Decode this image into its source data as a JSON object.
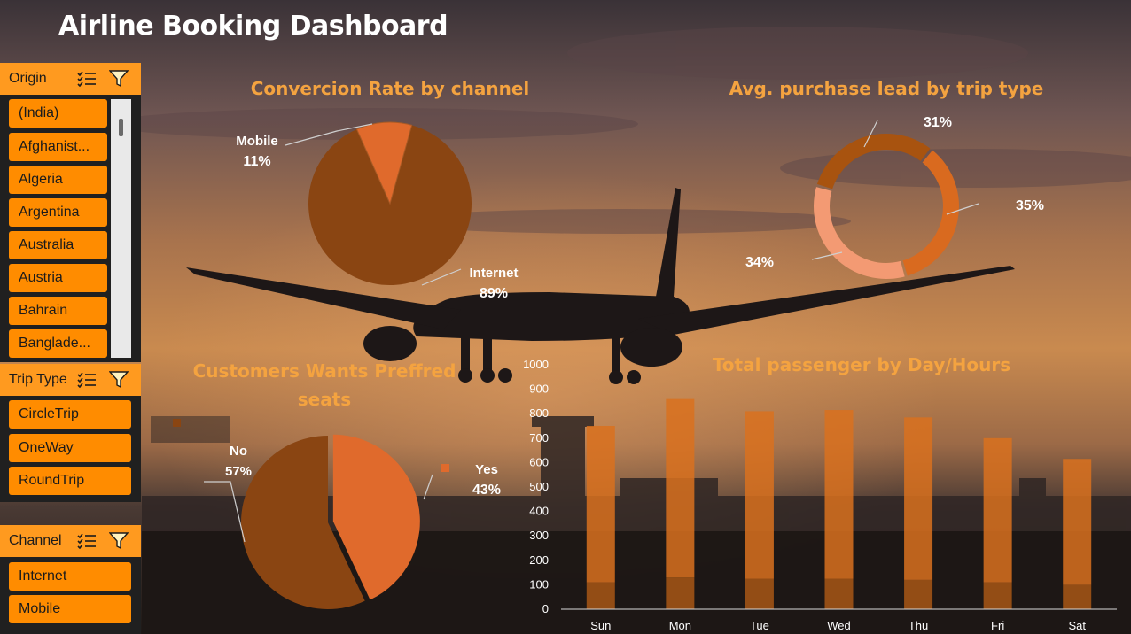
{
  "dashboard": {
    "title": "Airline Booking Dashboard"
  },
  "slicers": {
    "origin": {
      "label": "Origin",
      "items": [
        "(India)",
        "Afghanist...",
        "Algeria",
        "Argentina",
        "Australia",
        "Austria",
        "Bahrain",
        "Banglade..."
      ]
    },
    "trip_type": {
      "label": "Trip Type",
      "items": [
        "CircleTrip",
        "OneWay",
        "RoundTrip"
      ]
    },
    "channel": {
      "label": "Channel",
      "items": [
        "Internet",
        "Mobile"
      ]
    },
    "icons": [
      "multi-select-icon",
      "clear-filter-icon"
    ]
  },
  "colors": {
    "title_orange": "#f4a340",
    "slicer_header": "#ff9a1f",
    "slicer_item": "#ff8c00",
    "pie_dark": "#8a4512",
    "pie_light": "#e06a2c",
    "donut_dark": "#a8530f",
    "donut_mid": "#d96a1f",
    "donut_light": "#f39a73",
    "bar_top": "#d9711f",
    "bar_bottom": "#a85715"
  },
  "chart_data": [
    {
      "type": "pie",
      "title": "Convercion Rate by channel",
      "slices": [
        {
          "label": "Internet",
          "value": 89,
          "display": "89%"
        },
        {
          "label": "Mobile",
          "value": 11,
          "display": "11%"
        }
      ]
    },
    {
      "type": "pie",
      "title": "Avg. purchase lead by trip type",
      "style": "donut",
      "slices": [
        {
          "label": "",
          "value": 31,
          "display": "31%"
        },
        {
          "label": "",
          "value": 35,
          "display": "35%"
        },
        {
          "label": "",
          "value": 34,
          "display": "34%"
        }
      ]
    },
    {
      "type": "pie",
      "title": "Customers Wants Preffred seats",
      "title_lines": [
        "Customers Wants Preffred",
        "seats"
      ],
      "slices": [
        {
          "label": "No",
          "value": 57,
          "display": "57%"
        },
        {
          "label": "Yes",
          "value": 43,
          "display": "43%"
        }
      ]
    },
    {
      "type": "bar",
      "title": "Total passenger by Day/Hours",
      "categories": [
        "Sun",
        "Mon",
        "Tue",
        "Wed",
        "Thu",
        "Fri",
        "Sat"
      ],
      "series": [
        {
          "values": [
            110,
            130,
            125,
            125,
            120,
            110,
            100
          ]
        },
        {
          "values": [
            640,
            730,
            685,
            690,
            665,
            590,
            515
          ]
        }
      ],
      "totals": [
        750,
        860,
        810,
        815,
        785,
        700,
        615
      ],
      "stacked": true,
      "ylim": [
        0,
        1000
      ],
      "yticks": [
        "0",
        "100",
        "200",
        "300",
        "400",
        "500",
        "600",
        "700",
        "800",
        "900",
        "1000"
      ],
      "grid": false
    }
  ]
}
